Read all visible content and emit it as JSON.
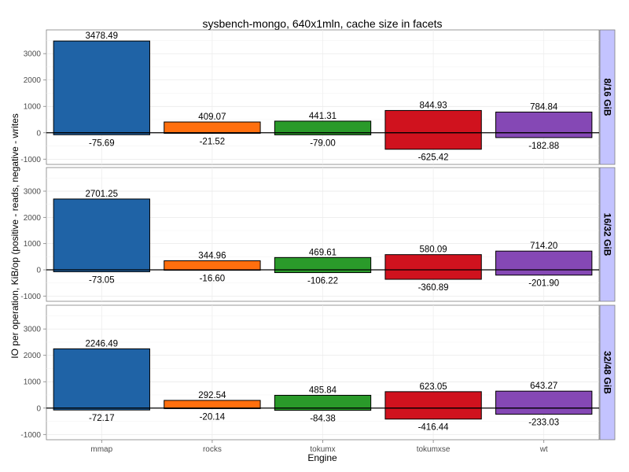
{
  "chart_data": {
    "type": "bar",
    "title": "sysbench-mongo, 640x1mln, cache size in facets",
    "xlabel": "Engine",
    "ylabel": "IO per operation, KiB/op (positive - reads, negative - writes",
    "categories": [
      "mmap",
      "rocks",
      "tokumx",
      "tokumxse",
      "wt"
    ],
    "colors": [
      "#1f63a6",
      "#ff6f0e",
      "#2a9a2a",
      "#d0121e",
      "#8548b5"
    ],
    "ylim": [
      -1200,
      3900
    ],
    "yticks": [
      -1000,
      0,
      1000,
      2000,
      3000
    ],
    "grid": true,
    "facet_strip_color": "#c3c3ff",
    "facets": [
      {
        "label": "8/16 GiB",
        "reads": [
          3478.49,
          409.07,
          441.31,
          844.93,
          784.84
        ],
        "writes": [
          -75.69,
          -21.52,
          -79.0,
          -625.42,
          -182.88
        ],
        "read_labels": [
          "3478.49",
          "409.07",
          "441.31",
          "844.93",
          "784.84"
        ],
        "write_labels": [
          "-75.69",
          "-21.52",
          "-79.00",
          "-625.42",
          "-182.88"
        ]
      },
      {
        "label": "16/32 GiB",
        "reads": [
          2701.25,
          344.96,
          469.61,
          580.09,
          714.2
        ],
        "writes": [
          -73.05,
          -16.6,
          -106.22,
          -360.89,
          -201.9
        ],
        "read_labels": [
          "2701.25",
          "344.96",
          "469.61",
          "580.09",
          "714.20"
        ],
        "write_labels": [
          "-73.05",
          "-16.60",
          "-106.22",
          "-360.89",
          "-201.90"
        ]
      },
      {
        "label": "32/48 GiB",
        "reads": [
          2246.49,
          292.54,
          485.84,
          623.05,
          643.27
        ],
        "writes": [
          -72.17,
          -20.14,
          -84.38,
          -416.44,
          -233.03
        ],
        "read_labels": [
          "2246.49",
          "292.54",
          "485.84",
          "623.05",
          "643.27"
        ],
        "write_labels": [
          "-72.17",
          "-20.14",
          "-84.38",
          "-416.44",
          "-233.03"
        ]
      }
    ]
  }
}
